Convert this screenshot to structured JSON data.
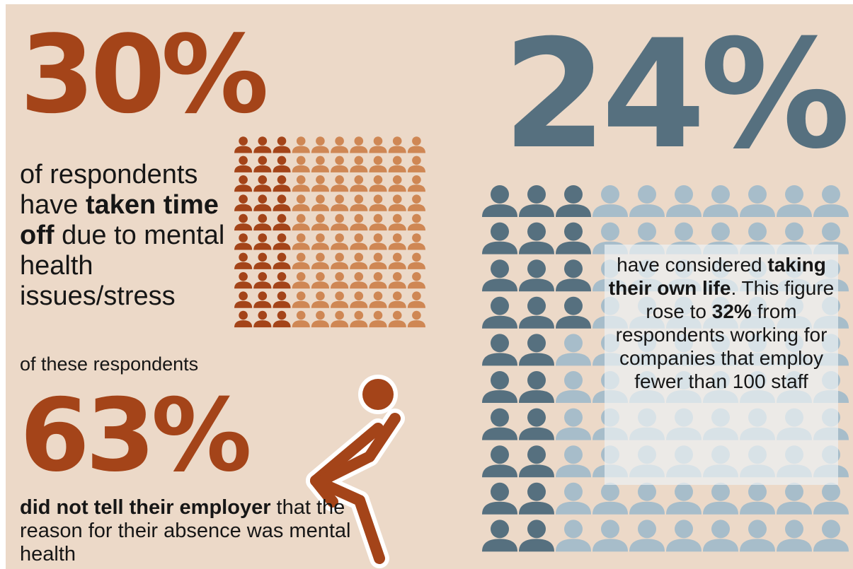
{
  "colors": {
    "background": "#ecd9c8",
    "rust": "#a44419",
    "rust_light": "#cf8754",
    "slate": "#56707f",
    "slate_light": "#a7bdca"
  },
  "stat30": {
    "value": "30%",
    "text_1": "of respondents have ",
    "text_bold": "taken time off",
    "text_2": " due to mental health issues/stress",
    "fraction_highlighted": 0.3
  },
  "stat63": {
    "intro": "of these respondents",
    "value": "63%",
    "text_bold": "did not tell their employer",
    "text_2": " that the reason for their absence was mental health"
  },
  "stat24": {
    "value": "24%",
    "text_1": "have considered ",
    "text_bold": "taking their own life",
    "text_2": ". This figure rose to ",
    "text_bold_2": "32%",
    "text_3": " from respondents working for companies that employ fewer than 100 staff",
    "fraction_highlighted": 0.24
  },
  "icons": {
    "people_grid": "person-icon",
    "distressed_person": "head-in-hands-figure-icon"
  }
}
